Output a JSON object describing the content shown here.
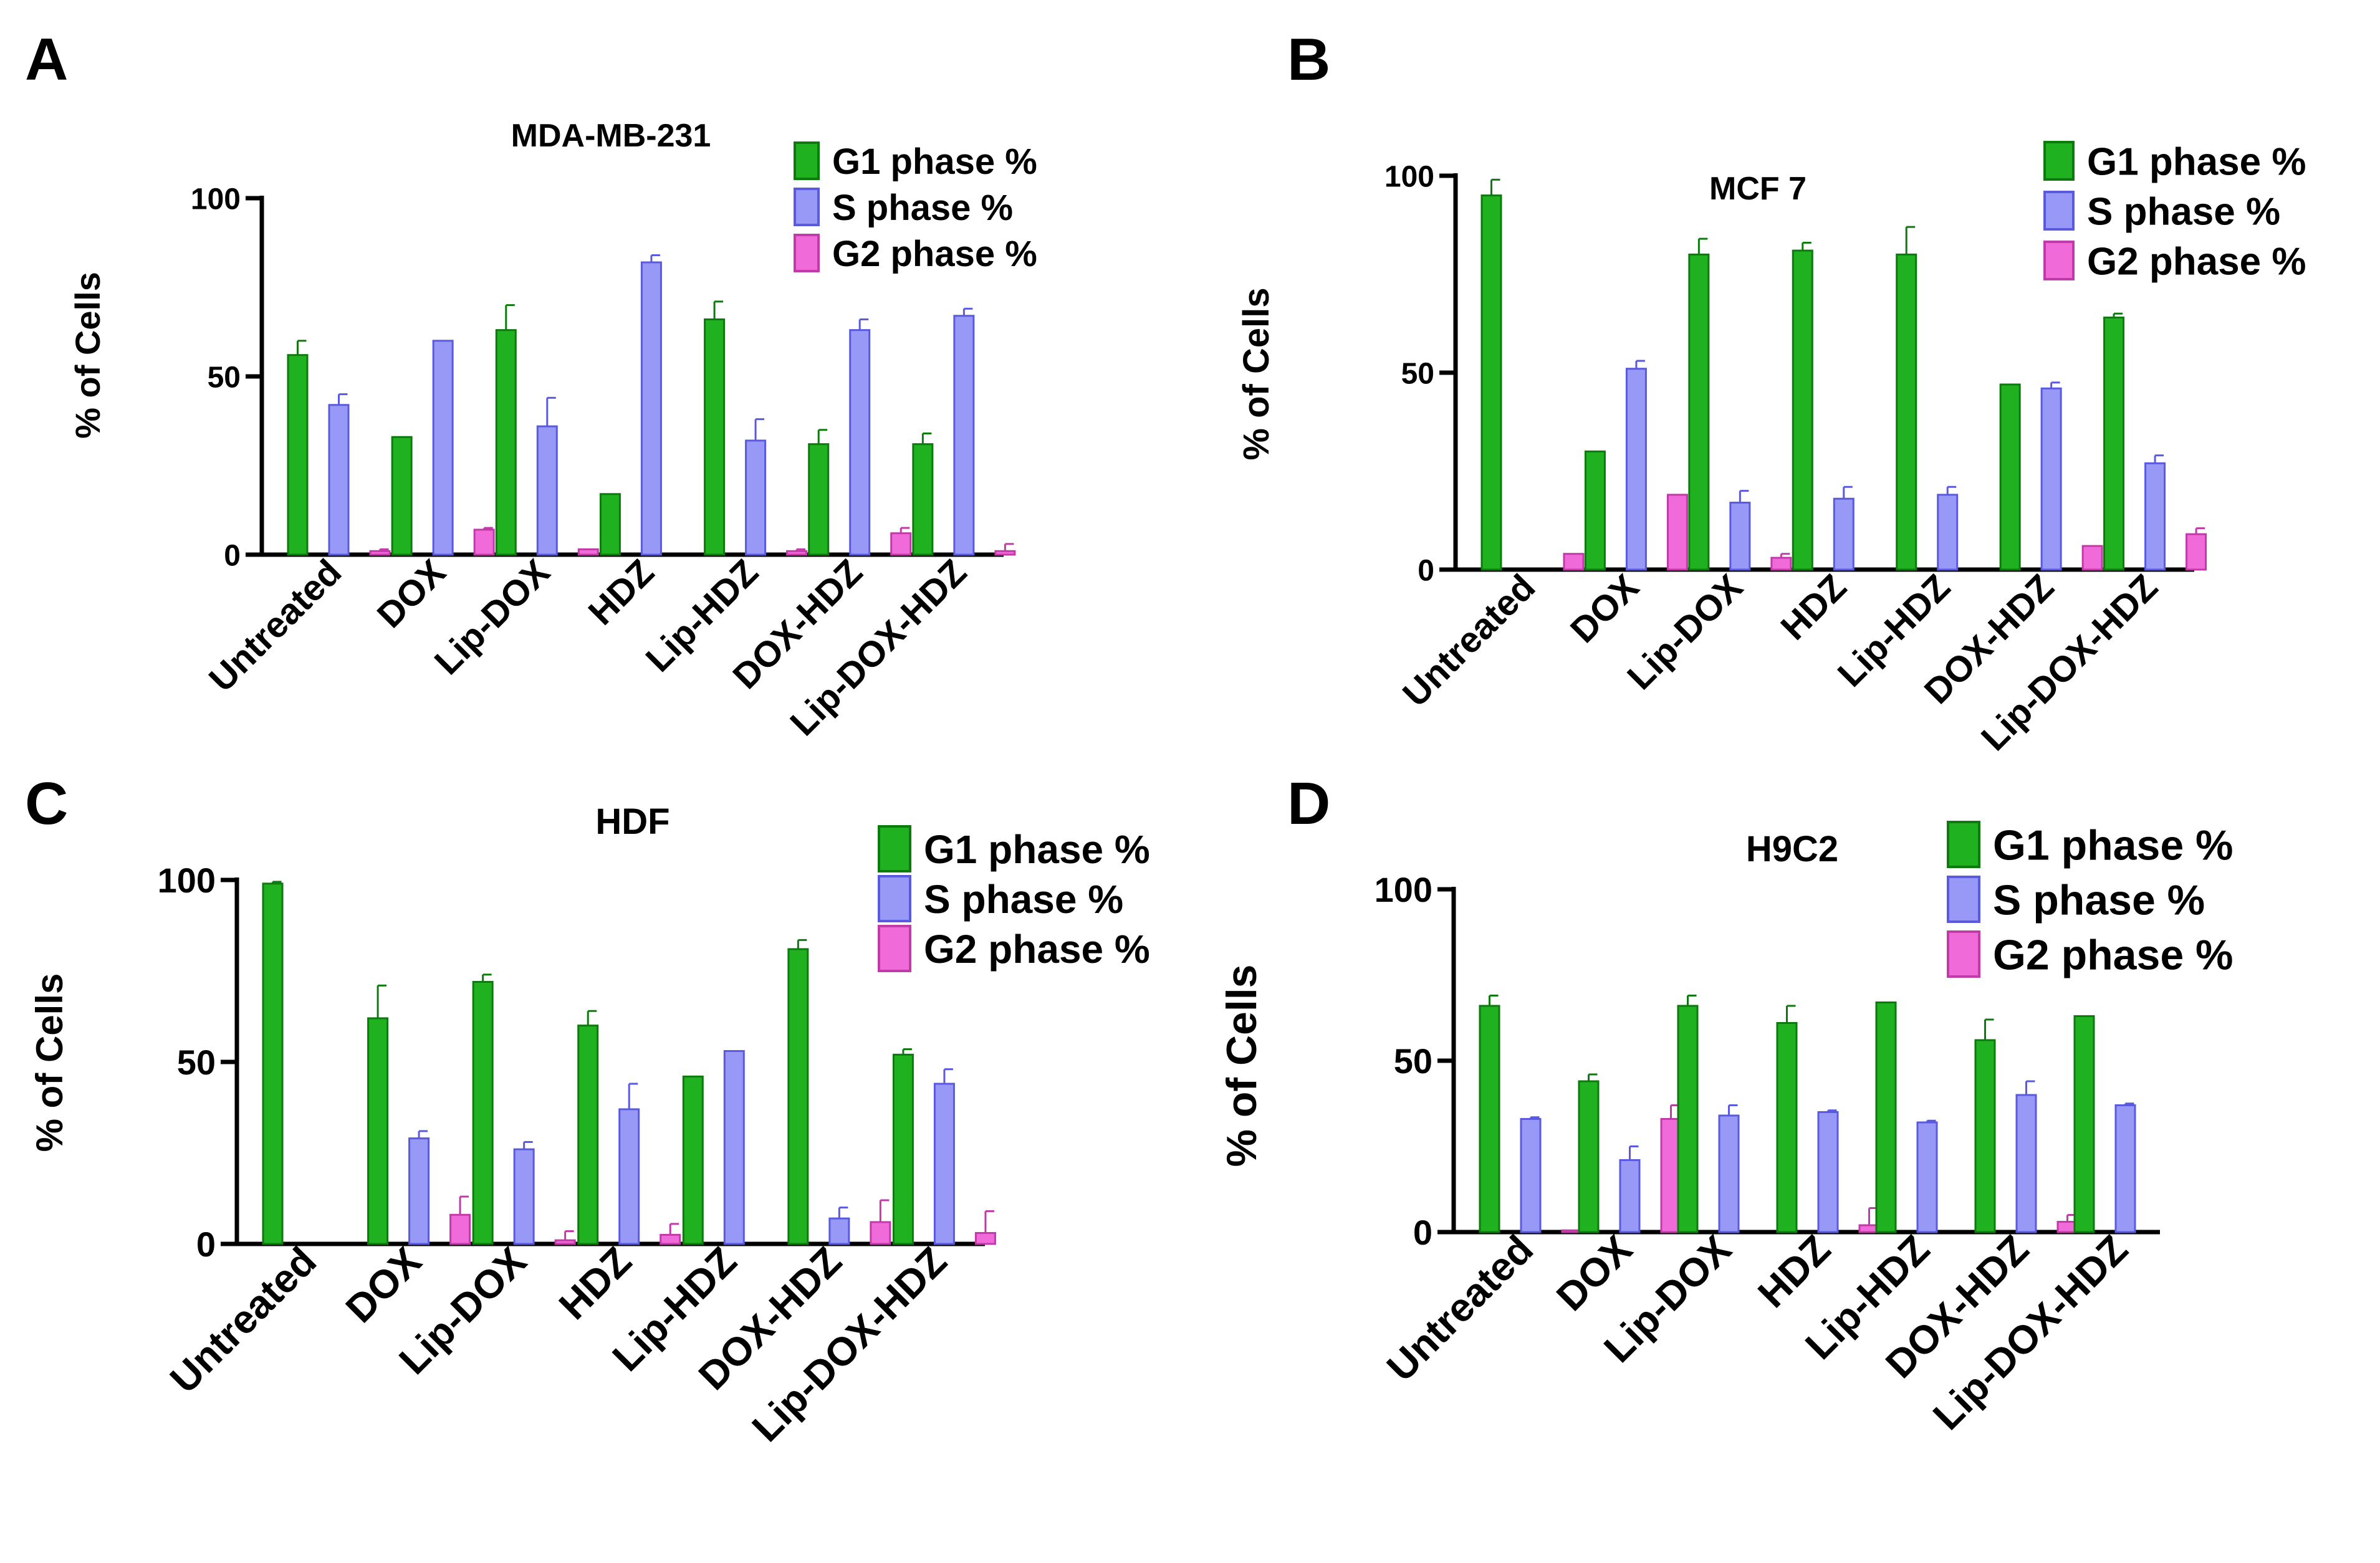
{
  "colors": {
    "g1_fill": "#1fb11f",
    "g1_edge": "#0d7a0d",
    "s_fill": "#9898f6",
    "s_edge": "#5a5ae0",
    "g2_fill": "#f16ad9",
    "g2_edge": "#c23aa8",
    "axis": "#000000"
  },
  "chart_data": [
    {
      "panel": "A",
      "type": "bar",
      "title": "MDA-MB-231",
      "ylabel": "% of Cells",
      "xlabel": "",
      "ylim": [
        0,
        100
      ],
      "yticks": [
        "0",
        "50",
        "100"
      ],
      "legend_position": "top-right",
      "categories": [
        "Untreated",
        "DOX",
        "Lip-DOX",
        "HDZ",
        "Lip-HDZ",
        "DOX-HDZ",
        "Lip-DOX-HDZ"
      ],
      "series": [
        {
          "name": "G1 phase %",
          "values": [
            56,
            33,
            63,
            17,
            66,
            31,
            31
          ],
          "errors": [
            4,
            0,
            7,
            0,
            5,
            4,
            3
          ]
        },
        {
          "name": "S phase %",
          "values": [
            42,
            60,
            36,
            82,
            32,
            63,
            67
          ],
          "errors": [
            3,
            0,
            8,
            2,
            6,
            3,
            2
          ]
        },
        {
          "name": "G2 phase %",
          "values": [
            1,
            7,
            1.5,
            0,
            1,
            6,
            1
          ],
          "errors": [
            0.5,
            0.5,
            0,
            0,
            0.5,
            1.5,
            2
          ]
        }
      ]
    },
    {
      "panel": "B",
      "type": "bar",
      "title": "MCF 7",
      "ylabel": "% of Cells",
      "xlabel": "",
      "ylim": [
        0,
        100
      ],
      "yticks": [
        "0",
        "50",
        "100"
      ],
      "legend_position": "top-right",
      "categories": [
        "Untreated",
        "DOX",
        "Lip-DOX",
        "HDZ",
        "Lip-HDZ",
        "DOX-HDZ",
        "Lip-DOX-HDZ"
      ],
      "series": [
        {
          "name": "G1 phase %",
          "values": [
            95,
            30,
            80,
            81,
            80,
            47,
            64
          ],
          "errors": [
            4,
            0,
            4,
            2,
            7,
            0,
            1
          ]
        },
        {
          "name": "S phase %",
          "values": [
            0,
            51,
            17,
            18,
            19,
            46,
            27
          ],
          "errors": [
            0,
            2,
            3,
            3,
            2,
            1.5,
            2
          ]
        },
        {
          "name": "G2 phase %",
          "values": [
            4,
            19,
            3,
            0,
            0,
            6,
            9
          ],
          "errors": [
            0,
            0,
            1,
            0,
            0,
            0,
            1.5
          ]
        }
      ]
    },
    {
      "panel": "C",
      "type": "bar",
      "title": "HDF",
      "ylabel": "% of Cells",
      "xlabel": "",
      "ylim": [
        0,
        100
      ],
      "yticks": [
        "0",
        "50",
        "100"
      ],
      "legend_position": "top-right",
      "categories": [
        "Untreated",
        "DOX",
        "Lip-DOX",
        "HDZ",
        "Lip-HDZ",
        "DOX-HDZ",
        "Lip-DOX-HDZ"
      ],
      "series": [
        {
          "name": "G1 phase %",
          "values": [
            99,
            62,
            72,
            60,
            46,
            81,
            52
          ],
          "errors": [
            0.5,
            9,
            2,
            4,
            0,
            2.5,
            1.5
          ]
        },
        {
          "name": "S phase %",
          "values": [
            0,
            29,
            26,
            37,
            53,
            7,
            44
          ],
          "errors": [
            0,
            2,
            2,
            7,
            0,
            3,
            4
          ]
        },
        {
          "name": "G2 phase %",
          "values": [
            0,
            8,
            1,
            2.5,
            0,
            6,
            3
          ],
          "errors": [
            0,
            5,
            2.5,
            3,
            0,
            6,
            6
          ]
        }
      ]
    },
    {
      "panel": "D",
      "type": "bar",
      "title": "H9C2",
      "ylabel": "% of Cells",
      "xlabel": "",
      "ylim": [
        0,
        100
      ],
      "yticks": [
        "0",
        "50",
        "100"
      ],
      "legend_position": "top-right",
      "categories": [
        "Untreated",
        "DOX",
        "Lip-DOX",
        "HDZ",
        "Lip-HDZ",
        "DOX-HDZ",
        "Lip-DOX-HDZ"
      ],
      "series": [
        {
          "name": "G1 phase %",
          "values": [
            66,
            44,
            66,
            61,
            67,
            56,
            63
          ],
          "errors": [
            3,
            2,
            3,
            5,
            0,
            6,
            0
          ]
        },
        {
          "name": "S phase %",
          "values": [
            33,
            21,
            34,
            35,
            32,
            40,
            37
          ],
          "errors": [
            0.5,
            4,
            3,
            0.5,
            0.5,
            4,
            0.5
          ]
        },
        {
          "name": "G2 phase %",
          "values": [
            0.5,
            33,
            0,
            2,
            0,
            3,
            0
          ],
          "errors": [
            0,
            4,
            0,
            5,
            0,
            2,
            0
          ]
        }
      ]
    }
  ]
}
